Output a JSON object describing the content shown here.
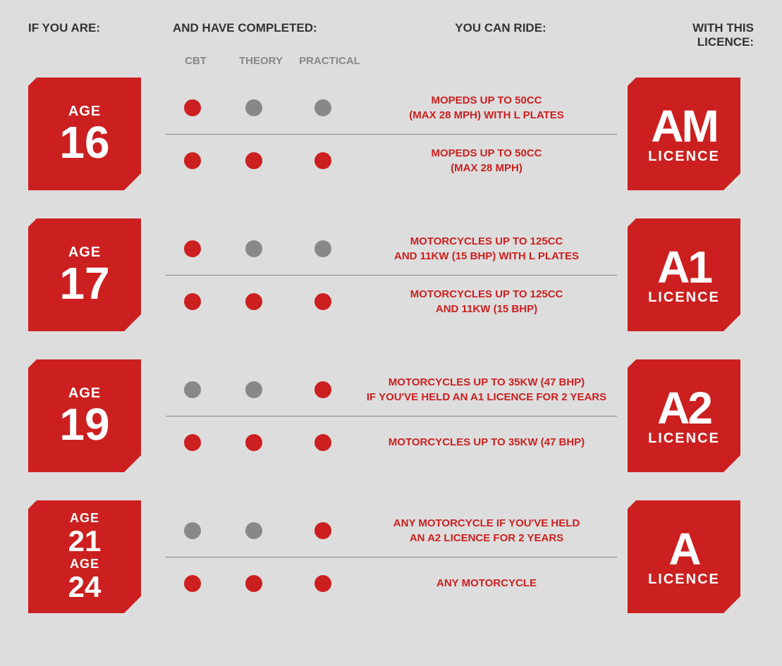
{
  "headers": {
    "col1": "IF YOU ARE:",
    "col2": "AND HAVE COMPLETED:",
    "col3": "YOU CAN RIDE:",
    "col4": "WITH THIS LICENCE:"
  },
  "subheaders": {
    "cbt": "CBT",
    "theory": "THEORY",
    "practical": "PRACTICAL"
  },
  "colors": {
    "red": "#cc1f1f",
    "grey": "#888888",
    "bg": "#dddddd",
    "text": "#333333"
  },
  "rows": [
    {
      "age_label": "AGE",
      "age_num": "16",
      "dual": false,
      "paths": [
        {
          "dots": [
            "red",
            "grey",
            "grey"
          ],
          "ride": "MOPEDS UP TO 50CC\n(MAX 28 MPH) WITH L PLATES"
        },
        {
          "dots": [
            "red",
            "red",
            "red"
          ],
          "ride": "MOPEDS UP TO 50CC\n(MAX 28 MPH)"
        }
      ],
      "licence_code": "AM",
      "licence_word": "LICENCE"
    },
    {
      "age_label": "AGE",
      "age_num": "17",
      "dual": false,
      "paths": [
        {
          "dots": [
            "red",
            "grey",
            "grey"
          ],
          "ride": "MOTORCYCLES UP TO 125CC\nAND 11KW (15 BHP) WITH L PLATES"
        },
        {
          "dots": [
            "red",
            "red",
            "red"
          ],
          "ride": "MOTORCYCLES UP TO 125CC\nAND 11KW (15 BHP)"
        }
      ],
      "licence_code": "A1",
      "licence_word": "LICENCE"
    },
    {
      "age_label": "AGE",
      "age_num": "19",
      "dual": false,
      "paths": [
        {
          "dots": [
            "grey",
            "grey",
            "red"
          ],
          "ride": "MOTORCYCLES UP TO 35KW (47 BHP)\nIF YOU'VE HELD AN A1 LICENCE FOR 2 YEARS"
        },
        {
          "dots": [
            "red",
            "red",
            "red"
          ],
          "ride": "MOTORCYCLES UP TO 35KW (47 BHP)"
        }
      ],
      "licence_code": "A2",
      "licence_word": "LICENCE"
    },
    {
      "age_label": "AGE",
      "age_num": "21",
      "age_label2": "AGE",
      "age_num2": "24",
      "dual": true,
      "paths": [
        {
          "dots": [
            "grey",
            "grey",
            "red"
          ],
          "ride": "ANY MOTORCYCLE IF YOU'VE HELD\nAN A2 LICENCE FOR 2 YEARS"
        },
        {
          "dots": [
            "red",
            "red",
            "red"
          ],
          "ride": "ANY MOTORCYCLE"
        }
      ],
      "licence_code": "A",
      "licence_word": "LICENCE"
    }
  ]
}
